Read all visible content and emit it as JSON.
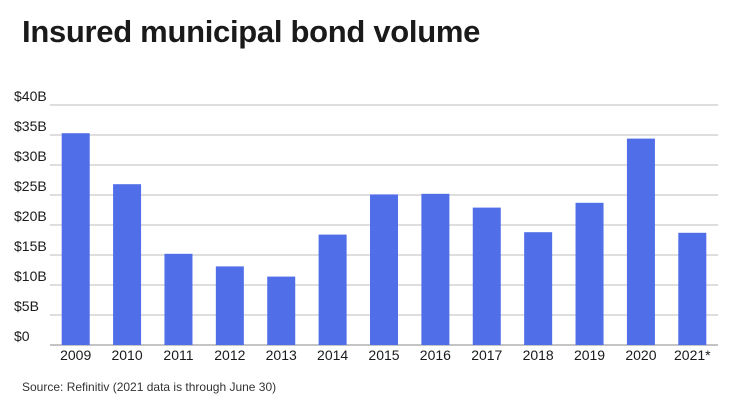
{
  "chart_data": {
    "type": "bar",
    "title": "Insured municipal bond volume",
    "categories": [
      "2009",
      "2010",
      "2011",
      "2012",
      "2013",
      "2014",
      "2015",
      "2016",
      "2017",
      "2018",
      "2019",
      "2020",
      "2021*"
    ],
    "values": [
      35.3,
      26.8,
      15.2,
      13.1,
      11.4,
      18.4,
      25.1,
      25.2,
      22.9,
      18.8,
      23.7,
      34.4,
      18.7
    ],
    "value_unit": "billions of dollars",
    "ylim": [
      0,
      40
    ],
    "yticks": [
      0,
      5,
      10,
      15,
      20,
      25,
      30,
      35,
      40
    ],
    "ytick_labels": [
      "$0",
      "$5B",
      "$10B",
      "$15B",
      "$20B",
      "$25B",
      "$30B",
      "$35B",
      "$40B"
    ],
    "xlabel": "",
    "ylabel": "",
    "grid": true,
    "bar_color": "#4f6ee8",
    "source": "Source: Refinitiv (2021 data is through June 30)"
  }
}
